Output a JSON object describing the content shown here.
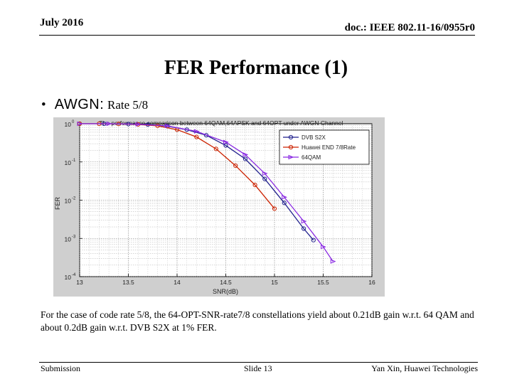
{
  "header": {
    "date": "July 2016",
    "doc": "doc.: IEEE 802.11-16/0955r0"
  },
  "slide_title": "FER Performance (1)",
  "bullet": {
    "symbol": "•",
    "label": "AWGN:",
    "rate": "Rate 5/8"
  },
  "note": "For the case of code rate 5/8, the 64-OPT-SNR-rate7/8 constellations yield about 0.21dB gain w.r.t. 64 QAM and about 0.2dB gain w.r.t. DVB S2X at  1% FER.",
  "footer": {
    "left": "Submission",
    "middle": "Slide 13",
    "right": "Yan Xin, Huawei Technologies"
  },
  "colors": {
    "dvb_s2x": "#1f1f8c",
    "huawei": "#cc2200",
    "qam64": "#8a2be2",
    "chart_bg": "#cfcfcf"
  },
  "chart_data": {
    "type": "line",
    "title": "The performance comparison between 64QAM,64APSK and 64OPT under AWGN Channel",
    "xlabel": "SNR(dB)",
    "ylabel": "FER",
    "xlim": [
      13,
      16
    ],
    "ylim": [
      0.0001,
      1
    ],
    "yscale": "log",
    "grid": true,
    "legend_position": "top-right",
    "x_ticks": [
      "13",
      "13.5",
      "14",
      "14.5",
      "15",
      "15.5",
      "16"
    ],
    "y_ticks": [
      {
        "base": "10",
        "exp": "0",
        "value": 1
      },
      {
        "base": "10",
        "exp": "-1",
        "value": 0.1
      },
      {
        "base": "10",
        "exp": "-2",
        "value": 0.01
      },
      {
        "base": "10",
        "exp": "-3",
        "value": 0.001
      },
      {
        "base": "10",
        "exp": "-4",
        "value": 0.0001
      }
    ],
    "series": [
      {
        "name": "DVB S2X",
        "color": "#1f1f8c",
        "marker": "circle",
        "x": [
          13.0,
          13.25,
          13.5,
          13.7,
          13.9,
          14.1,
          14.3,
          14.5,
          14.7,
          14.9,
          15.1,
          15.3,
          15.4
        ],
        "y": [
          1.0,
          1.0,
          0.98,
          0.95,
          0.86,
          0.7,
          0.5,
          0.27,
          0.12,
          0.036,
          0.0085,
          0.0018,
          0.0009
        ]
      },
      {
        "name": "Huawei END 7/8Rate",
        "color": "#cc2200",
        "marker": "circle",
        "x": [
          13.0,
          13.2,
          13.4,
          13.6,
          13.8,
          14.0,
          14.2,
          14.4,
          14.6,
          14.8,
          15.0
        ],
        "y": [
          1.0,
          1.0,
          0.99,
          0.96,
          0.88,
          0.7,
          0.45,
          0.22,
          0.08,
          0.025,
          0.006
        ]
      },
      {
        "name": "64QAM",
        "color": "#8a2be2",
        "marker": "triangle",
        "x": [
          13.0,
          13.3,
          13.6,
          13.9,
          14.2,
          14.5,
          14.7,
          14.9,
          15.1,
          15.3,
          15.5,
          15.6
        ],
        "y": [
          1.0,
          1.0,
          0.97,
          0.88,
          0.63,
          0.33,
          0.155,
          0.05,
          0.012,
          0.0028,
          0.0006,
          0.00025
        ]
      }
    ]
  }
}
